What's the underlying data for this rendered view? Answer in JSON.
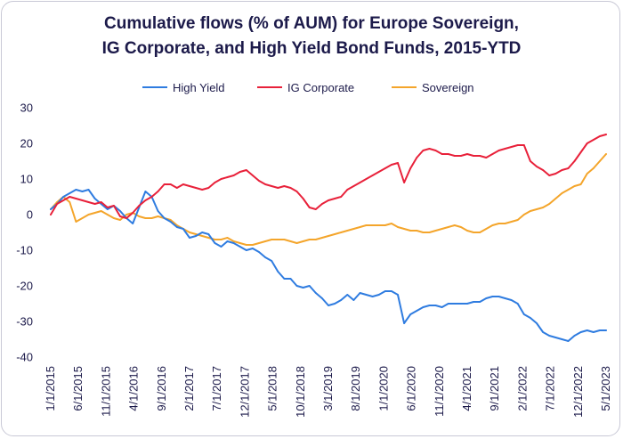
{
  "chart_data": {
    "type": "line",
    "title_lines": [
      "Cumulative flows (% of AUM) for Europe Sovereign,",
      "IG Corporate, and High Yield Bond Funds, 2015-YTD"
    ],
    "xlabel": "",
    "ylabel": "",
    "ylim": [
      -40,
      30
    ],
    "yticks": [
      30,
      20,
      10,
      0,
      -10,
      -20,
      -30,
      -40
    ],
    "x_tick_labels": [
      "1/1/2015",
      "6/1/2015",
      "11/1/2015",
      "4/1/2016",
      "9/1/2016",
      "2/1/2017",
      "7/1/2017",
      "12/1/2017",
      "5/1/2018",
      "10/1/2018",
      "3/1/2019",
      "8/1/2019",
      "1/1/2020",
      "6/1/2020",
      "11/1/2020",
      "4/1/2021",
      "9/1/2021",
      "2/1/2022",
      "7/1/2022",
      "12/1/2022",
      "5/1/2023"
    ],
    "legend_position": "top",
    "grid": false,
    "series": [
      {
        "name": "High Yield",
        "color": "#2f7ce0",
        "points": [
          [
            0,
            1.5
          ],
          [
            1,
            3
          ],
          [
            2,
            5
          ],
          [
            3,
            6
          ],
          [
            4,
            7
          ],
          [
            5,
            6.5
          ],
          [
            6,
            7
          ],
          [
            7,
            4.5
          ],
          [
            8,
            3
          ],
          [
            9,
            1.5
          ],
          [
            10,
            2.5
          ],
          [
            11,
            1
          ],
          [
            12,
            -1
          ],
          [
            13,
            -2.5
          ],
          [
            14,
            2
          ],
          [
            15,
            6.5
          ],
          [
            16,
            5
          ],
          [
            17,
            1
          ],
          [
            18,
            -1
          ],
          [
            19,
            -2
          ],
          [
            20,
            -3.5
          ],
          [
            21,
            -4
          ],
          [
            22,
            -6.5
          ],
          [
            23,
            -6
          ],
          [
            24,
            -5
          ],
          [
            25,
            -5.5
          ],
          [
            26,
            -8
          ],
          [
            27,
            -9
          ],
          [
            28,
            -7.5
          ],
          [
            29,
            -8
          ],
          [
            30,
            -9
          ],
          [
            31,
            -10
          ],
          [
            32,
            -9.5
          ],
          [
            33,
            -10.5
          ],
          [
            34,
            -12
          ],
          [
            35,
            -13
          ],
          [
            36,
            -16
          ],
          [
            37,
            -18
          ],
          [
            38,
            -18
          ],
          [
            39,
            -20
          ],
          [
            40,
            -20.5
          ],
          [
            41,
            -20
          ],
          [
            42,
            -22
          ],
          [
            43,
            -23.5
          ],
          [
            44,
            -25.5
          ],
          [
            45,
            -25
          ],
          [
            46,
            -24
          ],
          [
            47,
            -22.5
          ],
          [
            48,
            -24
          ],
          [
            49,
            -22
          ],
          [
            50,
            -22.5
          ],
          [
            51,
            -23
          ],
          [
            52,
            -22.5
          ],
          [
            53,
            -21.5
          ],
          [
            54,
            -21.5
          ],
          [
            55,
            -22.5
          ],
          [
            56,
            -30.5
          ],
          [
            57,
            -28
          ],
          [
            58,
            -27
          ],
          [
            59,
            -26
          ],
          [
            60,
            -25.5
          ],
          [
            61,
            -25.5
          ],
          [
            62,
            -26
          ],
          [
            63,
            -25
          ],
          [
            64,
            -25
          ],
          [
            65,
            -25
          ],
          [
            66,
            -25
          ],
          [
            67,
            -24.5
          ],
          [
            68,
            -24.5
          ],
          [
            69,
            -23.5
          ],
          [
            70,
            -23
          ],
          [
            71,
            -23
          ],
          [
            72,
            -23.5
          ],
          [
            73,
            -24
          ],
          [
            74,
            -25
          ],
          [
            75,
            -28
          ],
          [
            76,
            -29
          ],
          [
            77,
            -30.5
          ],
          [
            78,
            -33
          ],
          [
            79,
            -34
          ],
          [
            80,
            -34.5
          ],
          [
            81,
            -35
          ],
          [
            82,
            -35.5
          ],
          [
            83,
            -34
          ],
          [
            84,
            -33
          ],
          [
            85,
            -32.5
          ],
          [
            86,
            -33
          ],
          [
            87,
            -32.5
          ],
          [
            88,
            -32.5
          ]
        ]
      },
      {
        "name": "IG Corporate",
        "color": "#e8213a",
        "points": [
          [
            0,
            0
          ],
          [
            1,
            3
          ],
          [
            2,
            4
          ],
          [
            3,
            5
          ],
          [
            4,
            4.5
          ],
          [
            5,
            4
          ],
          [
            6,
            3.5
          ],
          [
            7,
            3
          ],
          [
            8,
            3.5
          ],
          [
            9,
            2
          ],
          [
            10,
            2.5
          ],
          [
            11,
            -0.5
          ],
          [
            12,
            -1
          ],
          [
            13,
            0.5
          ],
          [
            14,
            2.5
          ],
          [
            15,
            4
          ],
          [
            16,
            5
          ],
          [
            17,
            6.5
          ],
          [
            18,
            8.5
          ],
          [
            19,
            8.5
          ],
          [
            20,
            7.5
          ],
          [
            21,
            8.5
          ],
          [
            22,
            8
          ],
          [
            23,
            7.5
          ],
          [
            24,
            7
          ],
          [
            25,
            7.5
          ],
          [
            26,
            9
          ],
          [
            27,
            10
          ],
          [
            28,
            10.5
          ],
          [
            29,
            11
          ],
          [
            30,
            12
          ],
          [
            31,
            12.5
          ],
          [
            32,
            11
          ],
          [
            33,
            9.5
          ],
          [
            34,
            8.5
          ],
          [
            35,
            8
          ],
          [
            36,
            7.5
          ],
          [
            37,
            8
          ],
          [
            38,
            7.5
          ],
          [
            39,
            6.5
          ],
          [
            40,
            4.5
          ],
          [
            41,
            2
          ],
          [
            42,
            1.5
          ],
          [
            43,
            3
          ],
          [
            44,
            4
          ],
          [
            45,
            4.5
          ],
          [
            46,
            5
          ],
          [
            47,
            7
          ],
          [
            48,
            8
          ],
          [
            49,
            9
          ],
          [
            50,
            10
          ],
          [
            51,
            11
          ],
          [
            52,
            12
          ],
          [
            53,
            13
          ],
          [
            54,
            14
          ],
          [
            55,
            14.5
          ],
          [
            56,
            9
          ],
          [
            57,
            13
          ],
          [
            58,
            16
          ],
          [
            59,
            18
          ],
          [
            60,
            18.5
          ],
          [
            61,
            18
          ],
          [
            62,
            17
          ],
          [
            63,
            17
          ],
          [
            64,
            16.5
          ],
          [
            65,
            16.5
          ],
          [
            66,
            17
          ],
          [
            67,
            16.5
          ],
          [
            68,
            16.5
          ],
          [
            69,
            16
          ],
          [
            70,
            17
          ],
          [
            71,
            18
          ],
          [
            72,
            18.5
          ],
          [
            73,
            19
          ],
          [
            74,
            19.5
          ],
          [
            75,
            19.5
          ],
          [
            76,
            15
          ],
          [
            77,
            13.5
          ],
          [
            78,
            12.5
          ],
          [
            79,
            11
          ],
          [
            80,
            11.5
          ],
          [
            81,
            12.5
          ],
          [
            82,
            13
          ],
          [
            83,
            15
          ],
          [
            84,
            17.5
          ],
          [
            85,
            20
          ],
          [
            86,
            21
          ],
          [
            87,
            22
          ],
          [
            88,
            22.5
          ]
        ]
      },
      {
        "name": "Sovereign",
        "color": "#f4a52b",
        "points": [
          [
            0,
            1.5
          ],
          [
            1,
            3.5
          ],
          [
            2,
            5
          ],
          [
            3,
            3.5
          ],
          [
            4,
            -2
          ],
          [
            5,
            -1
          ],
          [
            6,
            0
          ],
          [
            7,
            0.5
          ],
          [
            8,
            1
          ],
          [
            9,
            0
          ],
          [
            10,
            -1
          ],
          [
            11,
            -1.5
          ],
          [
            12,
            0
          ],
          [
            13,
            0.5
          ],
          [
            14,
            -0.5
          ],
          [
            15,
            -1
          ],
          [
            16,
            -1
          ],
          [
            17,
            -0.5
          ],
          [
            18,
            -1
          ],
          [
            19,
            -1.5
          ],
          [
            20,
            -3
          ],
          [
            21,
            -4
          ],
          [
            22,
            -5
          ],
          [
            23,
            -5.5
          ],
          [
            24,
            -6
          ],
          [
            25,
            -6.5
          ],
          [
            26,
            -7
          ],
          [
            27,
            -7
          ],
          [
            28,
            -6.5
          ],
          [
            29,
            -7.5
          ],
          [
            30,
            -8
          ],
          [
            31,
            -8.5
          ],
          [
            32,
            -8.5
          ],
          [
            33,
            -8
          ],
          [
            34,
            -7.5
          ],
          [
            35,
            -7
          ],
          [
            36,
            -7
          ],
          [
            37,
            -7
          ],
          [
            38,
            -7.5
          ],
          [
            39,
            -8
          ],
          [
            40,
            -7.5
          ],
          [
            41,
            -7
          ],
          [
            42,
            -7
          ],
          [
            43,
            -6.5
          ],
          [
            44,
            -6
          ],
          [
            45,
            -5.5
          ],
          [
            46,
            -5
          ],
          [
            47,
            -4.5
          ],
          [
            48,
            -4
          ],
          [
            49,
            -3.5
          ],
          [
            50,
            -3
          ],
          [
            51,
            -3
          ],
          [
            52,
            -3
          ],
          [
            53,
            -3
          ],
          [
            54,
            -2.5
          ],
          [
            55,
            -3.5
          ],
          [
            56,
            -4
          ],
          [
            57,
            -4.5
          ],
          [
            58,
            -4.5
          ],
          [
            59,
            -5
          ],
          [
            60,
            -5
          ],
          [
            61,
            -4.5
          ],
          [
            62,
            -4
          ],
          [
            63,
            -3.5
          ],
          [
            64,
            -3
          ],
          [
            65,
            -3.5
          ],
          [
            66,
            -4.5
          ],
          [
            67,
            -5
          ],
          [
            68,
            -5
          ],
          [
            69,
            -4
          ],
          [
            70,
            -3
          ],
          [
            71,
            -2.5
          ],
          [
            72,
            -2.5
          ],
          [
            73,
            -2
          ],
          [
            74,
            -1.5
          ],
          [
            75,
            0
          ],
          [
            76,
            1
          ],
          [
            77,
            1.5
          ],
          [
            78,
            2
          ],
          [
            79,
            3
          ],
          [
            80,
            4.5
          ],
          [
            81,
            6
          ],
          [
            82,
            7
          ],
          [
            83,
            8
          ],
          [
            84,
            8.5
          ],
          [
            85,
            11.5
          ],
          [
            86,
            13
          ],
          [
            87,
            15
          ],
          [
            88,
            17
          ]
        ]
      }
    ]
  }
}
